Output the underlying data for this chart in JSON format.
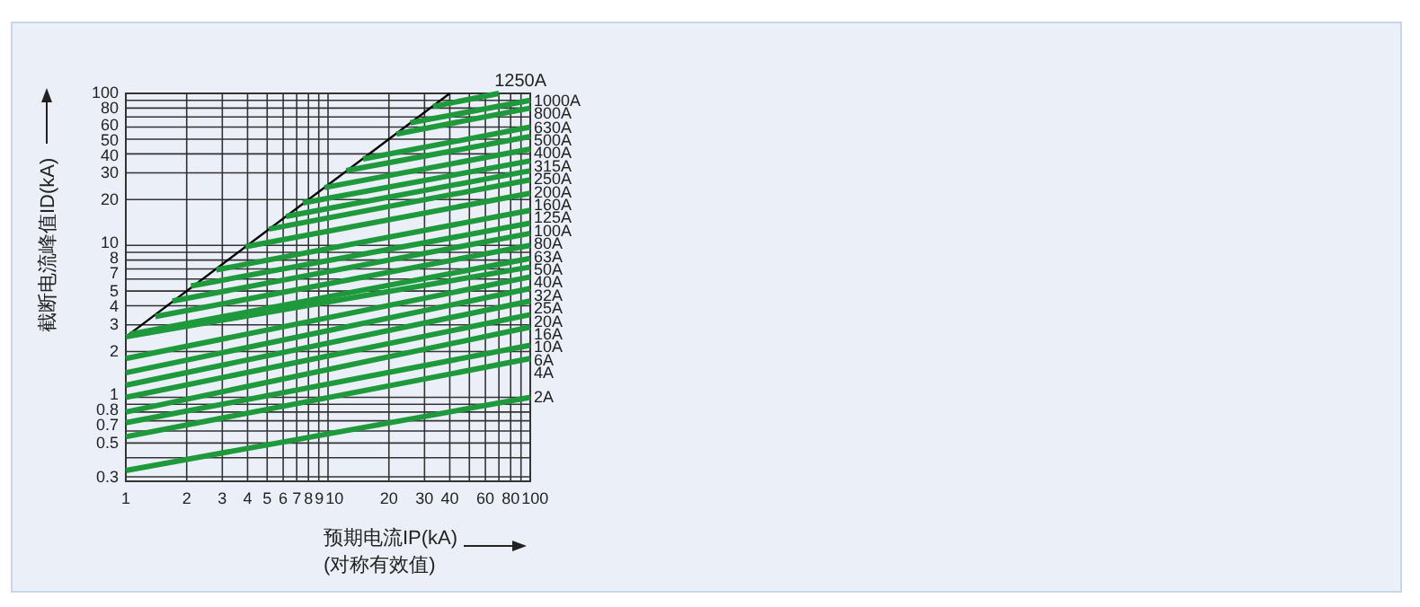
{
  "chart_data": {
    "type": "line",
    "xlabel": "预期电流IP(kA)\n(对称有效值)",
    "ylabel": "截断电流峰值ID(kA)",
    "log": "xy",
    "grid": true,
    "line_style": "solid",
    "xlim": [
      1,
      100
    ],
    "ylim": [
      0.28,
      100
    ],
    "xticks": [
      1,
      2,
      3,
      4,
      5,
      6,
      7,
      8,
      9,
      10,
      20,
      30,
      40,
      {
        "value": 50,
        "label": null
      },
      60,
      {
        "value": 70,
        "label": null
      },
      80,
      {
        "value": 90,
        "label": null
      },
      100
    ],
    "yticks": [
      0.3,
      {
        "value": 0.4,
        "label": null
      },
      0.5,
      {
        "value": 0.6,
        "label": null
      },
      0.7,
      0.8,
      {
        "value": 0.9,
        "label": null
      },
      1,
      2,
      3,
      4,
      5,
      {
        "value": 6,
        "label": null
      },
      7,
      8,
      {
        "value": 9,
        "label": null
      },
      10,
      20,
      30,
      40,
      50,
      60,
      {
        "value": 70,
        "label": null
      },
      80,
      {
        "value": 90,
        "label": null
      },
      100
    ],
    "series": [
      {
        "color": "#000000",
        "x": [
          1,
          40
        ],
        "values": [
          2.5,
          100
        ]
      },
      {
        "name": "1250A",
        "color": "#1e9a3c",
        "x": [
          33,
          70
        ],
        "values": [
          82,
          100
        ]
      },
      {
        "name": "1000A",
        "color": "#1e9a3c",
        "x": [
          25.5,
          100
        ],
        "values": [
          64,
          90
        ]
      },
      {
        "name": "800A",
        "color": "#1e9a3c",
        "x": [
          21.8,
          100
        ],
        "values": [
          54,
          80
        ]
      },
      {
        "name": "630A",
        "color": "#1e9a3c",
        "x": [
          14.9,
          100
        ],
        "values": [
          37,
          60
        ]
      },
      {
        "name": "500A",
        "color": "#1e9a3c",
        "x": [
          12.3,
          100
        ],
        "values": [
          31,
          52
        ]
      },
      {
        "name": "400A",
        "color": "#1e9a3c",
        "x": [
          9.6,
          100
        ],
        "values": [
          24,
          43
        ]
      },
      {
        "name": "315A",
        "color": "#1e9a3c",
        "x": [
          7.5,
          100
        ],
        "values": [
          19,
          36
        ]
      },
      {
        "name": "250A",
        "color": "#1e9a3c",
        "x": [
          6.2,
          100
        ],
        "values": [
          15.5,
          31
        ]
      },
      {
        "name": "200A",
        "color": "#1e9a3c",
        "x": [
          5.1,
          100
        ],
        "values": [
          12.8,
          27
        ]
      },
      {
        "name": "160A",
        "color": "#1e9a3c",
        "x": [
          3.9,
          100
        ],
        "values": [
          9.8,
          22
        ]
      },
      {
        "name": "125A",
        "color": "#1e9a3c",
        "x": [
          2.8,
          100
        ],
        "values": [
          6.9,
          17
        ]
      },
      {
        "name": "100A",
        "color": "#1e9a3c",
        "x": [
          2.1,
          100
        ],
        "values": [
          5.4,
          14
        ]
      },
      {
        "name": "80A",
        "color": "#1e9a3c",
        "x": [
          1.7,
          100
        ],
        "values": [
          4.3,
          12
        ]
      },
      {
        "name": "63A",
        "color": "#1e9a3c",
        "x": [
          1.4,
          100
        ],
        "values": [
          3.4,
          10
        ]
      },
      {
        "name": "50A",
        "color": "#1e9a3c",
        "x": [
          1.05,
          100
        ],
        "values": [
          2.6,
          8.2
        ]
      },
      {
        "name": "40A",
        "color": "#1e9a3c",
        "x": [
          1,
          100
        ],
        "values": [
          2.5,
          7.2
        ]
      },
      {
        "name": "32A",
        "color": "#1e9a3c",
        "x": [
          1,
          100
        ],
        "values": [
          1.8,
          6.2
        ]
      },
      {
        "name": "25A",
        "color": "#1e9a3c",
        "x": [
          1,
          100
        ],
        "values": [
          1.45,
          5.2
        ]
      },
      {
        "name": "20A",
        "color": "#1e9a3c",
        "x": [
          1,
          100
        ],
        "values": [
          1.2,
          4.3
        ]
      },
      {
        "name": "16A",
        "color": "#1e9a3c",
        "x": [
          1,
          100
        ],
        "values": [
          1.0,
          3.5
        ]
      },
      {
        "name": "10A",
        "color": "#1e9a3c",
        "x": [
          1,
          100
        ],
        "values": [
          0.8,
          2.9
        ]
      },
      {
        "name": "6A",
        "color": "#1e9a3c",
        "x": [
          1,
          100
        ],
        "values": [
          0.68,
          2.2
        ]
      },
      {
        "name": "4A",
        "color": "#1e9a3c",
        "x": [
          1,
          100
        ],
        "values": [
          0.55,
          1.8
        ]
      },
      {
        "name": "2A",
        "color": "#1e9a3c",
        "x": [
          1,
          100
        ],
        "values": [
          0.33,
          1.0
        ]
      }
    ]
  }
}
